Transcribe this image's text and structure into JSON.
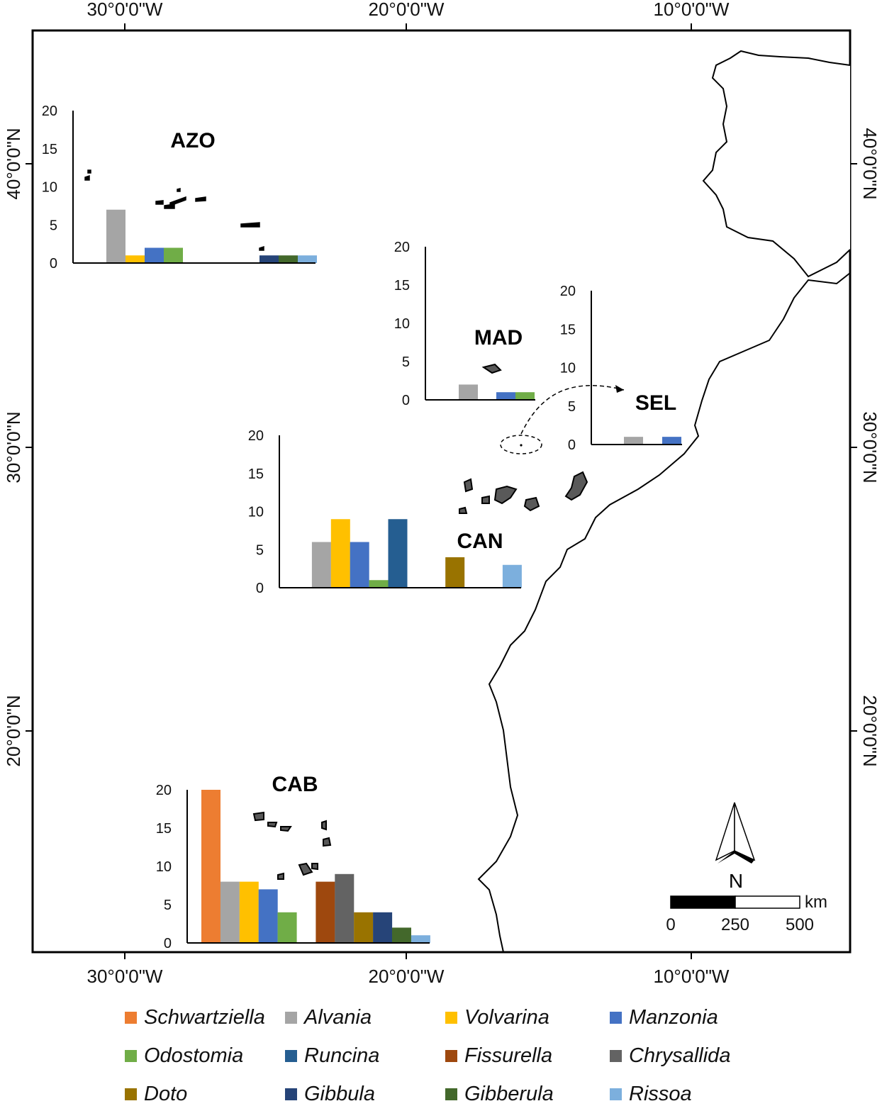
{
  "map": {
    "longitude_labels": [
      "30°0'0\"W",
      "20°0'0\"W",
      "10°0'0\"W"
    ],
    "latitude_labels": [
      "40°0'0\"N",
      "30°0'0\"N",
      "20°0'0\"N"
    ],
    "scale_bar": {
      "labels": [
        "0",
        "250",
        "500"
      ],
      "unit": "km"
    },
    "north_arrow": {
      "label": "N"
    },
    "colors": {
      "land_fill": "#ffffff",
      "island_fill": "#595959",
      "outline": "#000000"
    }
  },
  "species": [
    {
      "name": "Schwartziella",
      "color": "#ED7D31"
    },
    {
      "name": "Alvania",
      "color": "#A5A5A5"
    },
    {
      "name": "Volvarina",
      "color": "#FFC000"
    },
    {
      "name": "Manzonia",
      "color": "#4472C4"
    },
    {
      "name": "Odostomia",
      "color": "#70AD47"
    },
    {
      "name": "Runcina",
      "color": "#255E91"
    },
    {
      "name": "Fissurella",
      "color": "#9E480E"
    },
    {
      "name": "Chrysallida",
      "color": "#636363"
    },
    {
      "name": "Doto",
      "color": "#997300"
    },
    {
      "name": "Gibbula",
      "color": "#264478"
    },
    {
      "name": "Gibberula",
      "color": "#43682B"
    },
    {
      "name": "Rissoa",
      "color": "#7CAFDD"
    }
  ],
  "chart_data": [
    {
      "type": "bar",
      "title": "AZO",
      "ylim": [
        0,
        20
      ],
      "yticks": [
        0,
        5,
        10,
        15,
        20
      ],
      "categories": [
        "Schwartziella",
        "Alvania",
        "Volvarina",
        "Manzonia",
        "Odostomia",
        "Runcina",
        "Fissurella",
        "Chrysallida",
        "Doto",
        "Gibbula",
        "Gibberula",
        "Rissoa"
      ],
      "values": [
        0,
        7,
        1,
        2,
        2,
        0,
        0,
        0,
        0,
        1,
        1,
        1
      ]
    },
    {
      "type": "bar",
      "title": "MAD",
      "ylim": [
        0,
        20
      ],
      "yticks": [
        0,
        5,
        10,
        15,
        20
      ],
      "categories": [
        "Alvania",
        "Volvarina",
        "Manzonia",
        "Odostomia"
      ],
      "values": [
        2,
        0,
        1,
        1
      ]
    },
    {
      "type": "bar",
      "title": "SEL",
      "ylim": [
        0,
        20
      ],
      "yticks": [
        0,
        5,
        10,
        15,
        20
      ],
      "categories": [
        "Alvania",
        "Volvarina",
        "Manzonia"
      ],
      "values": [
        1,
        0,
        1
      ]
    },
    {
      "type": "bar",
      "title": "CAN",
      "ylim": [
        0,
        20
      ],
      "yticks": [
        0,
        5,
        10,
        15,
        20
      ],
      "categories": [
        "Schwartziella",
        "Alvania",
        "Volvarina",
        "Manzonia",
        "Odostomia",
        "Runcina",
        "Fissurella",
        "Chrysallida",
        "Doto",
        "Gibbula",
        "Gibberula",
        "Rissoa"
      ],
      "values": [
        0,
        6,
        9,
        6,
        1,
        9,
        0,
        0,
        4,
        0,
        0,
        3
      ]
    },
    {
      "type": "bar",
      "title": "CAB",
      "ylim": [
        0,
        20
      ],
      "yticks": [
        0,
        5,
        10,
        15,
        20
      ],
      "categories": [
        "Schwartziella",
        "Alvania",
        "Volvarina",
        "Manzonia",
        "Odostomia",
        "Runcina",
        "Fissurella",
        "Chrysallida",
        "Doto",
        "Gibbula",
        "Gibberula",
        "Rissoa"
      ],
      "values": [
        20,
        8,
        8,
        7,
        4,
        0,
        8,
        9,
        4,
        4,
        2,
        1
      ]
    }
  ]
}
